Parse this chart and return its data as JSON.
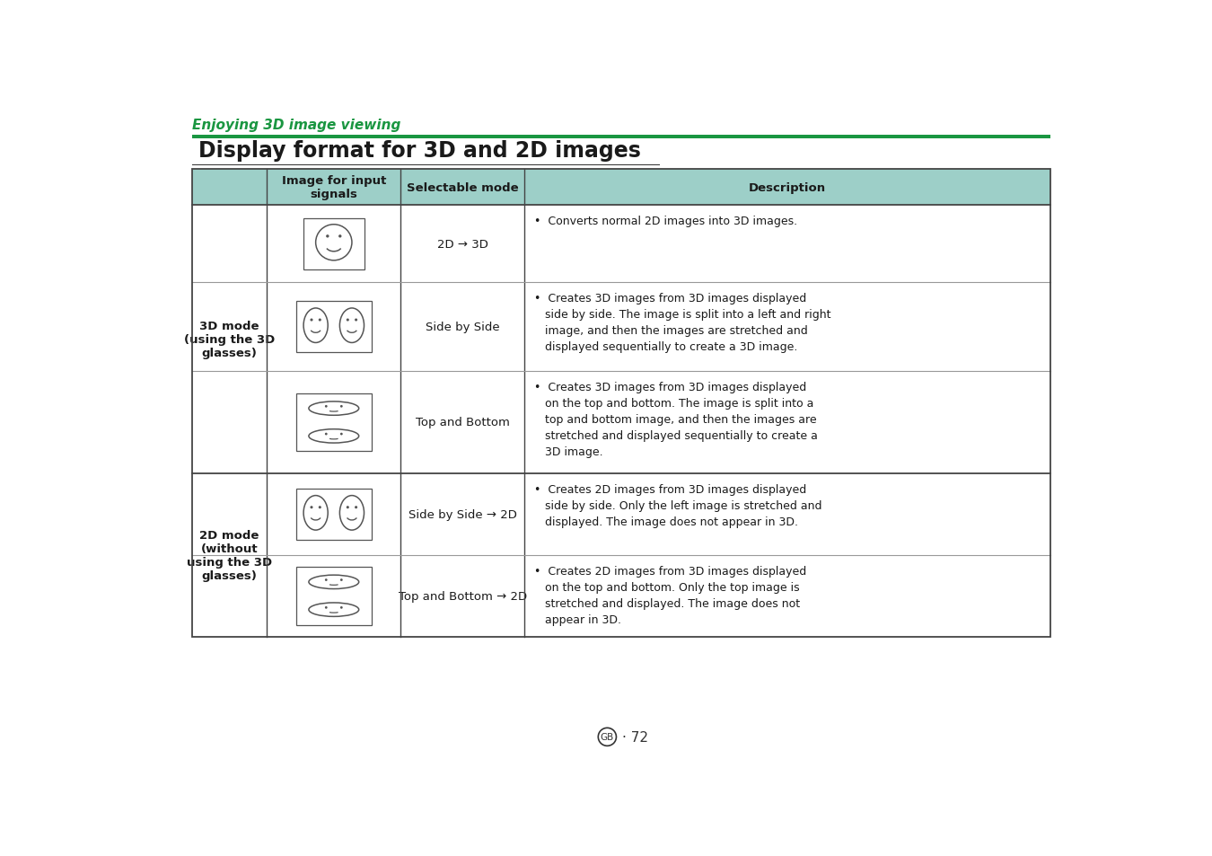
{
  "page_bg": "#ffffff",
  "section_label": "Enjoying 3D image viewing",
  "section_label_color": "#1a9641",
  "section_line_color": "#1a9641",
  "title": "Display format for 3D and 2D images",
  "title_color": "#1a1a1a",
  "header_bg": "#9dcfc8",
  "header_text_color": "#1a1a1a",
  "table_border_color": "#444444",
  "table_line_color": "#999999",
  "col_headers": [
    "Image for input\nsignals",
    "Selectable mode",
    "Description"
  ],
  "row_group_1_label": "3D mode\n(using the 3D\nglasses)",
  "row_group_2_label": "2D mode\n(without\nusing the 3D\nglasses)",
  "rows": [
    {
      "mode": "2D → 3D",
      "description": "•  Converts normal 2D images into 3D images.",
      "image_type": "single_face"
    },
    {
      "mode": "Side by Side",
      "description": "•  Creates 3D images from 3D images displayed\n   side by side. The image is split into a left and right\n   image, and then the images are stretched and\n   displayed sequentially to create a 3D image.",
      "image_type": "double_face"
    },
    {
      "mode": "Top and Bottom",
      "description": "•  Creates 3D images from 3D images displayed\n   on the top and bottom. The image is split into a\n   top and bottom image, and then the images are\n   stretched and displayed sequentially to create a\n   3D image.",
      "image_type": "top_bottom_face"
    },
    {
      "mode": "Side by Side → 2D",
      "description": "•  Creates 2D images from 3D images displayed\n   side by side. Only the left image is stretched and\n   displayed. The image does not appear in 3D.",
      "image_type": "double_face"
    },
    {
      "mode": "Top and Bottom → 2D",
      "description": "•  Creates 2D images from 3D images displayed\n   on the top and bottom. Only the top image is\n   stretched and displayed. The image does not\n   appear in 3D.",
      "image_type": "top_bottom_face"
    }
  ]
}
